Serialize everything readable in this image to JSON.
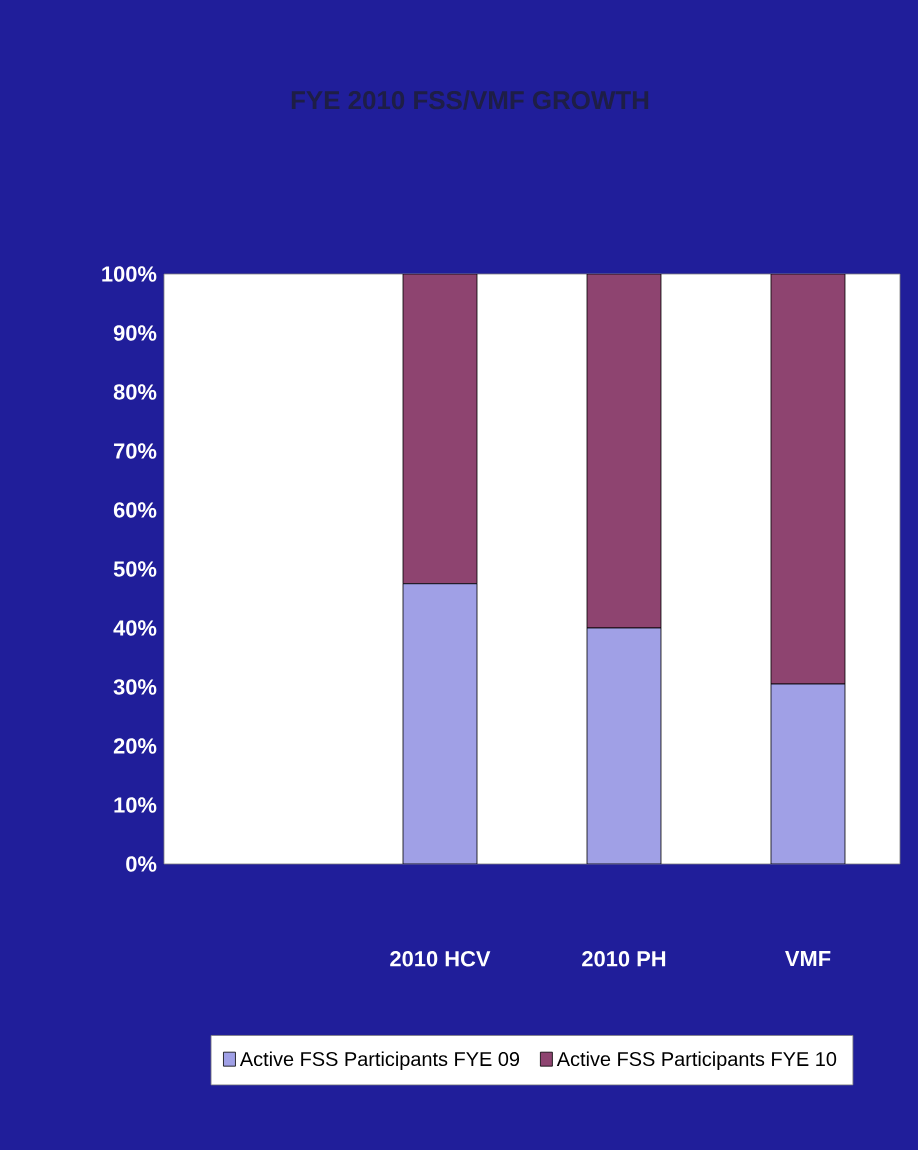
{
  "chart_data": {
    "type": "bar",
    "stacked": true,
    "title": "FYE 2010 FSS/VMF GROWTH",
    "categories": [
      null,
      "2010 HCV",
      "2010 PH",
      "VMF"
    ],
    "series": [
      {
        "name": "Active FSS Participants  FYE 09",
        "color": "#a0a0e6",
        "values": [
          null,
          47.5,
          40,
          30.5
        ]
      },
      {
        "name": "Active FSS Participants  FYE 10",
        "color": "#8e4470",
        "values": [
          null,
          52.5,
          60,
          69.5
        ]
      }
    ],
    "ylim": [
      0,
      100
    ],
    "yticks": [
      {
        "value": 0,
        "label": "0%"
      },
      {
        "value": 10,
        "label": "10%"
      },
      {
        "value": 20,
        "label": "20%"
      },
      {
        "value": 30,
        "label": "30%"
      },
      {
        "value": 40,
        "label": "40%"
      },
      {
        "value": 50,
        "label": "50%"
      },
      {
        "value": 60,
        "label": "60%"
      },
      {
        "value": 70,
        "label": "70%"
      },
      {
        "value": 80,
        "label": "80%"
      },
      {
        "value": 90,
        "label": "90%"
      },
      {
        "value": 100,
        "label": "100%"
      }
    ],
    "legend": "bottom"
  }
}
